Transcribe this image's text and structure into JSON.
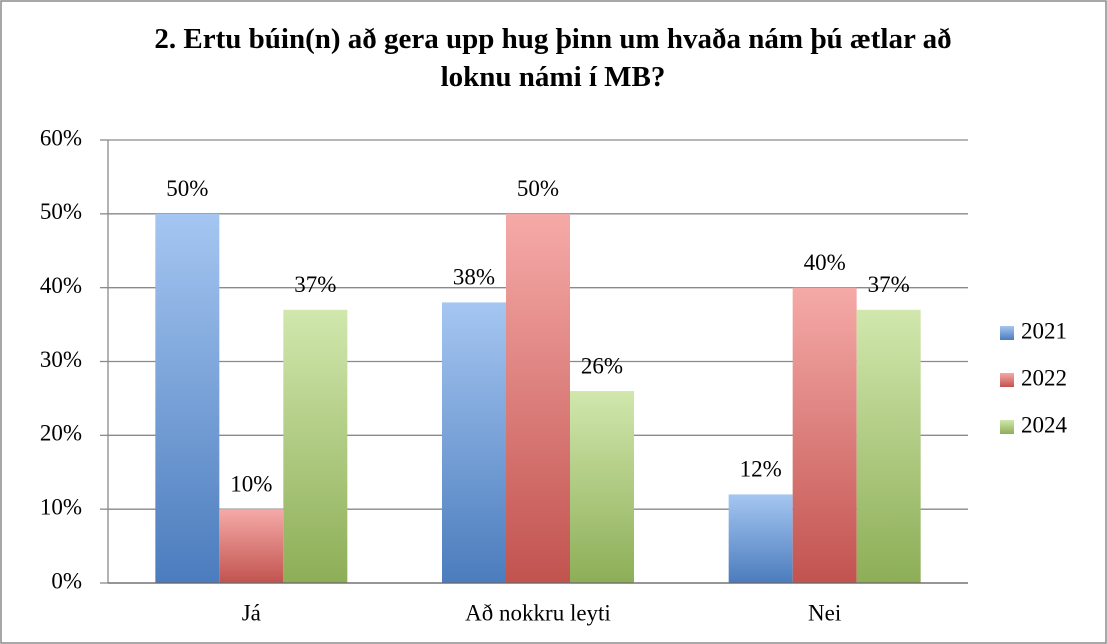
{
  "chart_data": {
    "type": "bar",
    "title": "2. Ertu búin(n) að gera upp hug þinn um hvaða nám þú ætlar að loknu námi í MB?",
    "categories": [
      "Já",
      "Að nokkru leyti",
      "Nei"
    ],
    "series": [
      {
        "name": "2021",
        "color": "#5b97e6",
        "values": [
          50,
          38,
          12
        ],
        "value_labels": [
          "50%",
          "38%",
          "12%"
        ]
      },
      {
        "name": "2022",
        "color": "#ec6560",
        "values": [
          10,
          50,
          40
        ],
        "value_labels": [
          "10%",
          "50%",
          "40%"
        ]
      },
      {
        "name": "2024",
        "color": "#acd46a",
        "values": [
          37,
          26,
          37
        ],
        "value_labels": [
          "37%",
          "26%",
          "37%"
        ]
      }
    ],
    "ylim": [
      0,
      60
    ],
    "yticks": [
      {
        "value": 0,
        "label": "0%"
      },
      {
        "value": 10,
        "label": "10%"
      },
      {
        "value": 20,
        "label": "20%"
      },
      {
        "value": 30,
        "label": "30%"
      },
      {
        "value": 40,
        "label": "40%"
      },
      {
        "value": 50,
        "label": "50%"
      },
      {
        "value": 60,
        "label": "60%"
      }
    ],
    "grid": true,
    "legend": "right"
  }
}
